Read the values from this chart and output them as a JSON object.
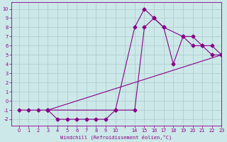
{
  "xlabel": "Windchill (Refroidissement éolien,°C)",
  "background_color": "#cce8e8",
  "line_color": "#880088",
  "grid_color": "#aacaca",
  "xlim": [
    -0.8,
    20.8
  ],
  "ylim": [
    -2.7,
    10.7
  ],
  "xtick_labels": [
    "0",
    "1",
    "2",
    "3",
    "4",
    "5",
    "6",
    "7",
    "8",
    "9",
    "10",
    "",
    "14",
    "15",
    "16",
    "17",
    "18",
    "19",
    "20",
    "21",
    "22",
    "23"
  ],
  "xtick_pos": [
    0,
    1,
    2,
    3,
    4,
    5,
    6,
    7,
    8,
    9,
    10,
    11,
    12,
    13,
    14,
    15,
    16,
    17,
    18,
    19,
    20,
    21
  ],
  "yticks": [
    -2,
    -1,
    0,
    1,
    2,
    3,
    4,
    5,
    6,
    7,
    8,
    9,
    10
  ],
  "x_map": {
    "0": 0,
    "1": 1,
    "2": 2,
    "3": 3,
    "4": 4,
    "5": 5,
    "6": 6,
    "7": 7,
    "8": 8,
    "9": 9,
    "10": 10,
    "14": 12,
    "15": 13,
    "16": 14,
    "17": 15,
    "18": 16,
    "19": 17,
    "20": 18,
    "21": 19,
    "22": 20,
    "23": 21
  },
  "line1_x": [
    0,
    1,
    2,
    3,
    4,
    5,
    6,
    7,
    8,
    9,
    10,
    12,
    13,
    14,
    15,
    16,
    17,
    18,
    19,
    20,
    21
  ],
  "line1_y": [
    -1,
    -1,
    -1,
    -1,
    -2,
    -2,
    -2,
    -2,
    -2,
    -2,
    -1,
    -1,
    8,
    9,
    8,
    4,
    7,
    6,
    6,
    5,
    5
  ],
  "line2_x": [
    3,
    10,
    12,
    13,
    14,
    15,
    17,
    18,
    19,
    20,
    21
  ],
  "line2_y": [
    -1,
    -1,
    8,
    10,
    9,
    8,
    7,
    7,
    6,
    6,
    5
  ],
  "line3_x": [
    3,
    21
  ],
  "line3_y": [
    -1,
    5
  ],
  "marker": "D",
  "marker_size": 2.5,
  "line_width": 0.8
}
